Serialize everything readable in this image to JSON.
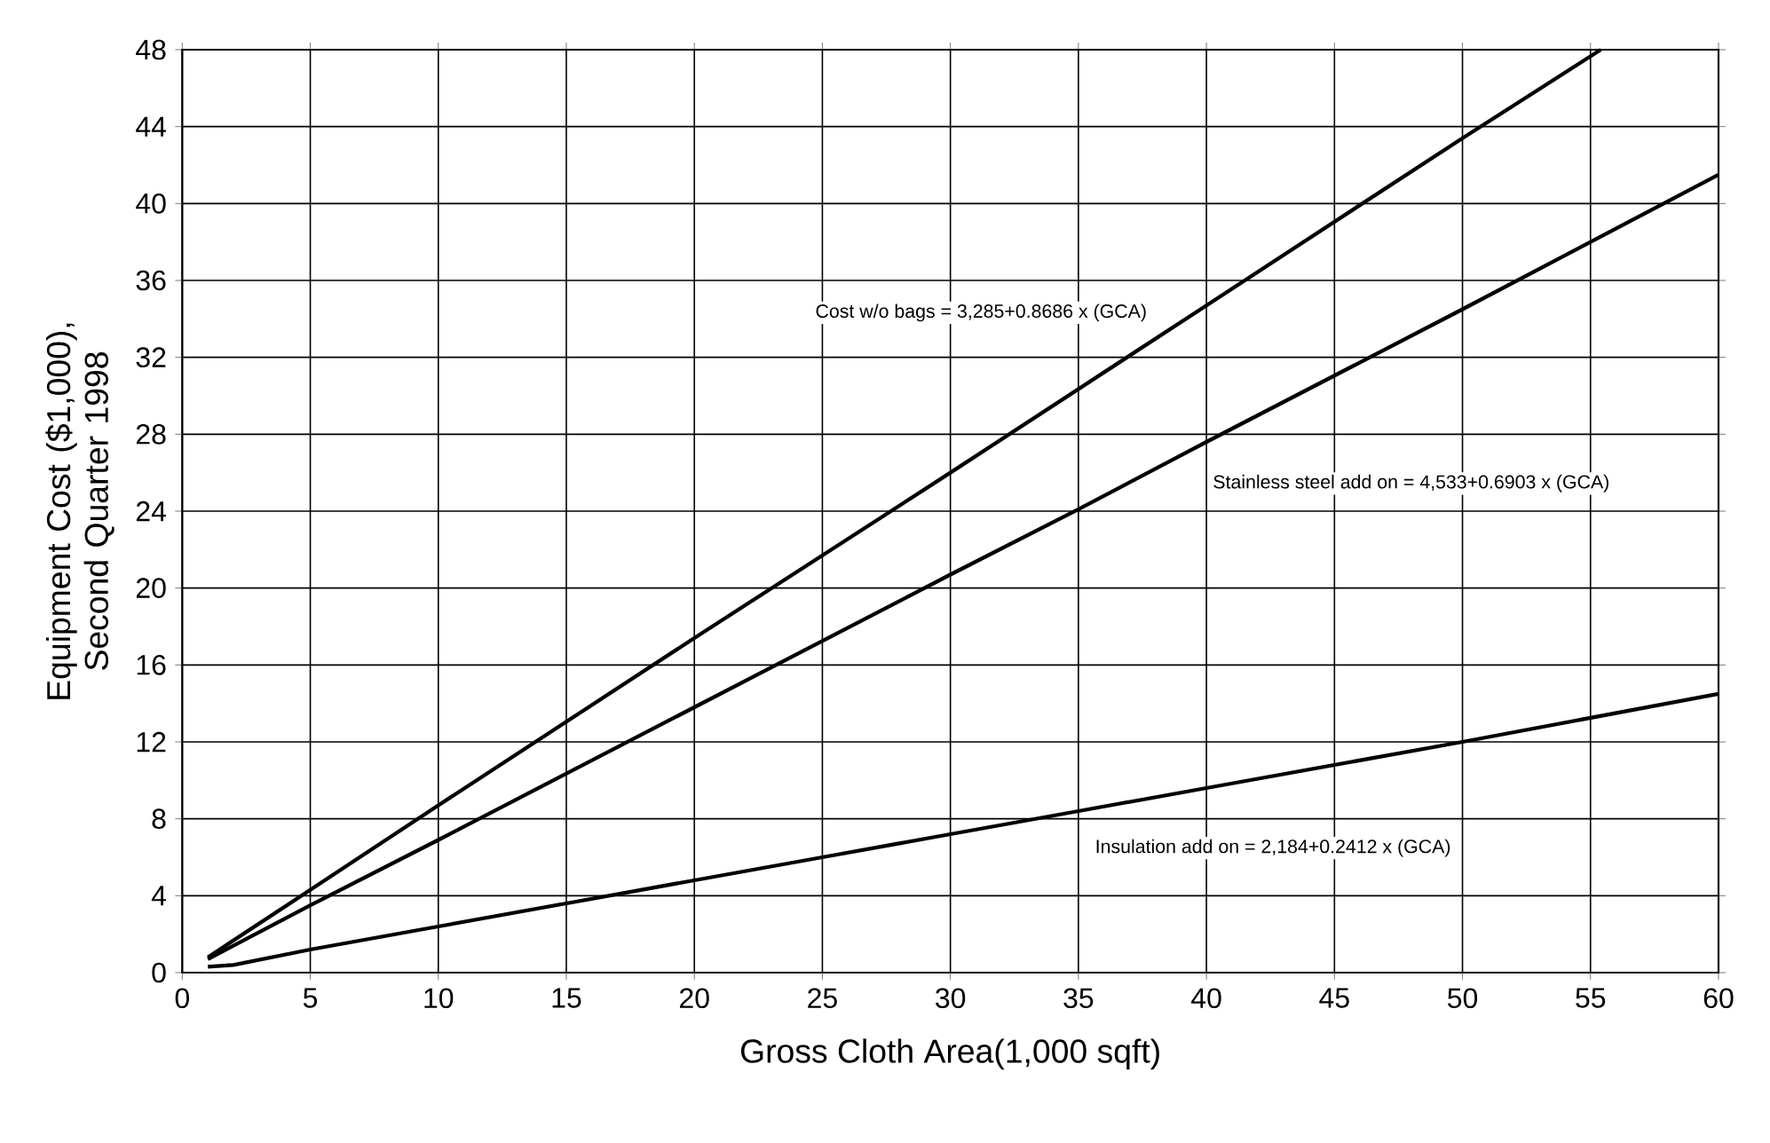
{
  "chart_data": {
    "type": "line",
    "xlabel": "Gross Cloth Area(1,000 sqft)",
    "ylabel": "Equipment Cost ($1,000), Second Quarter 1998",
    "xlim": [
      0,
      60
    ],
    "xticks": [
      0,
      5,
      10,
      15,
      20,
      25,
      30,
      35,
      40,
      45,
      50,
      55,
      60
    ],
    "ylim": [
      0,
      48
    ],
    "yticks": [
      0,
      4,
      8,
      12,
      16,
      20,
      24,
      28,
      32,
      36,
      40,
      44,
      48
    ],
    "grid": true,
    "marker": "none",
    "line_style": "solid",
    "series": [
      {
        "color": "#000000",
        "x": [
          1,
          5,
          10,
          20,
          30,
          40,
          50,
          55.4
        ],
        "values": [
          0.8,
          4.3,
          8.7,
          17.4,
          26,
          34.7,
          43.4,
          48
        ]
      },
      {
        "color": "#000000",
        "x": [
          1,
          5,
          10,
          20,
          30,
          35,
          40,
          50,
          60
        ],
        "values": [
          0.7,
          3.5,
          6.9,
          13.8,
          20.7,
          24.1,
          27.6,
          34.5,
          41.5
        ]
      },
      {
        "color": "#000000",
        "x": [
          1,
          2,
          5,
          10,
          15,
          20,
          25,
          30,
          35,
          40,
          50,
          60
        ],
        "values": [
          0.3,
          0.4,
          1.2,
          2.4,
          3.6,
          4.8,
          6,
          7.2,
          8.4,
          9.6,
          12,
          14.5
        ]
      }
    ],
    "annotations": [
      "Cost w/o bags = 3,285+0.8686 x (GCA)",
      "Stainless steel add on = 4,533+0.6903 x (GCA)",
      "Insulation add on = 2,184+0.2412 x (GCA)"
    ]
  }
}
